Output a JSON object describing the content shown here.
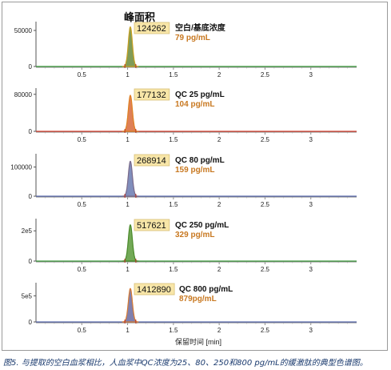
{
  "header": {
    "peak_area_label": "峰面积"
  },
  "caption": "图5. 与提取的空白血浆相比，人血浆中QC浓度为25、80、250和800 pg/mL的缓激肽的典型色谱图。",
  "xlabel": "保留时间 [min]",
  "colors": {
    "axis": "#555555",
    "baseline_green": "#3a9a3a",
    "baseline_red": "#d33a2a",
    "baseline_blue": "#5566aa",
    "area_box_fill": "#f8e6a8",
    "area_box_border": "#d8c078",
    "sample_label": "#111111",
    "measured_label": "#c87820"
  },
  "chart_data": [
    {
      "type": "line",
      "sample_label": "空白/基底浓度",
      "measured": "79 pg/mL",
      "peak_area": "124262",
      "xlim": [
        0,
        3.5
      ],
      "ylim": [
        0,
        60000
      ],
      "y_ticks": [
        "0",
        "50000"
      ],
      "y_tick_values": [
        0,
        50000
      ],
      "x_ticks": [
        "0.5",
        "1",
        "1.5",
        "2",
        "2.5",
        "3"
      ],
      "peak_rt": 1.03,
      "peak_height": 55000,
      "peak_fill": "#6a8a3a",
      "peak_edge": "#c8a020",
      "baseline": "#3a9a3a"
    },
    {
      "type": "line",
      "sample_label": "QC 25 pg/mL",
      "measured": "104 pg/mL",
      "peak_area": "177132",
      "xlim": [
        0,
        3.5
      ],
      "ylim": [
        0,
        90000
      ],
      "y_ticks": [
        "0",
        "80000"
      ],
      "y_tick_values": [
        0,
        80000
      ],
      "x_ticks": [
        "0.5",
        "1",
        "1.5",
        "2",
        "2.5",
        "3"
      ],
      "peak_rt": 1.03,
      "peak_height": 78000,
      "peak_fill": "#d86a3a",
      "peak_edge": "#e08020",
      "baseline": "#d33a2a"
    },
    {
      "type": "line",
      "sample_label": "QC 80 pg/mL",
      "measured": "159 pg/mL",
      "peak_area": "268914",
      "xlim": [
        0,
        3.5
      ],
      "ylim": [
        0,
        140000
      ],
      "y_ticks": [
        "0",
        "100000"
      ],
      "y_tick_values": [
        0,
        100000
      ],
      "x_ticks": [
        "0.5",
        "1",
        "1.5",
        "2",
        "2.5",
        "3"
      ],
      "peak_rt": 1.03,
      "peak_height": 120000,
      "peak_fill": "#6a7ab0",
      "peak_edge": "#7a6a8a",
      "baseline": "#5566aa"
    },
    {
      "type": "line",
      "sample_label": "QC 250 pg/mL",
      "measured": "329 pg/mL",
      "peak_area": "517621",
      "xlim": [
        0,
        3.5
      ],
      "ylim": [
        0,
        270000
      ],
      "y_ticks": [
        "0",
        "2e5"
      ],
      "y_tick_values": [
        0,
        200000
      ],
      "x_ticks": [
        "0.5",
        "1",
        "1.5",
        "2",
        "2.5",
        "3"
      ],
      "peak_rt": 1.03,
      "peak_height": 240000,
      "peak_fill": "#5a9a3a",
      "peak_edge": "#4a8a2a",
      "baseline": "#3a9a3a"
    },
    {
      "type": "line",
      "sample_label": "QC 800 pg/mL",
      "measured": "879pg/mL",
      "peak_area": "1412890",
      "xlim": [
        0,
        3.5
      ],
      "ylim": [
        0,
        720000
      ],
      "y_ticks": [
        "0",
        "5e5"
      ],
      "y_tick_values": [
        0,
        500000
      ],
      "x_ticks": [
        "0.5",
        "1",
        "1.5",
        "2",
        "2.5",
        "3"
      ],
      "peak_rt": 1.03,
      "peak_height": 640000,
      "peak_fill": "#6a6aa0",
      "peak_edge": "#d87a30",
      "baseline": "#5566aa"
    }
  ]
}
